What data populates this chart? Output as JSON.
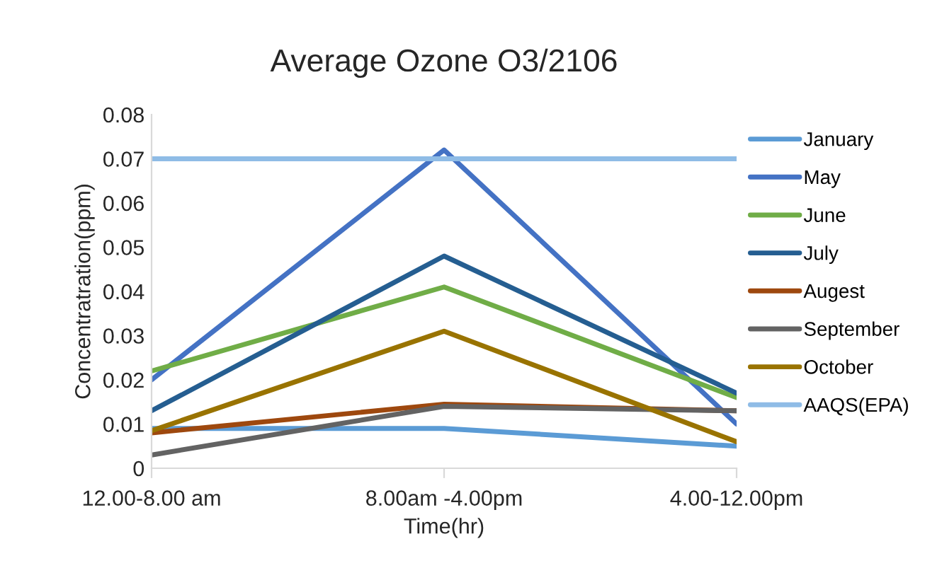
{
  "chart_data": {
    "type": "line",
    "title": "Average Ozone O3/2106",
    "xlabel": "Time(hr)",
    "ylabel": "Concentratration(ppm)",
    "categories": [
      "12.00-8.00 am",
      "8.00am -4.00pm",
      "4.00-12.00pm"
    ],
    "ylim": [
      0,
      0.08
    ],
    "yticks": [
      {
        "value": 0,
        "label": "0"
      },
      0.01,
      0.02,
      0.03,
      0.04,
      0.05,
      0.06,
      0.07,
      0.08
    ],
    "grid": false,
    "legend": "right",
    "marker": "none",
    "line_style": "solid",
    "series": [
      {
        "name": "January",
        "color": "#5b9bd5",
        "values": [
          0.009,
          0.009,
          0.005
        ]
      },
      {
        "name": "May",
        "color": "#4472c4",
        "values": [
          0.02,
          0.072,
          0.01
        ]
      },
      {
        "name": "June",
        "color": "#70ad47",
        "values": [
          0.022,
          0.041,
          0.016
        ]
      },
      {
        "name": "July",
        "color": "#255e91",
        "values": [
          0.013,
          0.048,
          0.017
        ]
      },
      {
        "name": "Augest",
        "color": "#9e480e",
        "values": [
          0.008,
          0.0145,
          0.013
        ]
      },
      {
        "name": "September",
        "color": "#636363",
        "values": [
          0.003,
          0.014,
          0.013
        ]
      },
      {
        "name": "October",
        "color": "#997300",
        "values": [
          0.0085,
          0.031,
          0.006
        ]
      },
      {
        "name": "AAQS(EPA)",
        "color": "#8fbce6",
        "values": [
          0.07,
          0.07,
          0.07
        ]
      }
    ]
  }
}
